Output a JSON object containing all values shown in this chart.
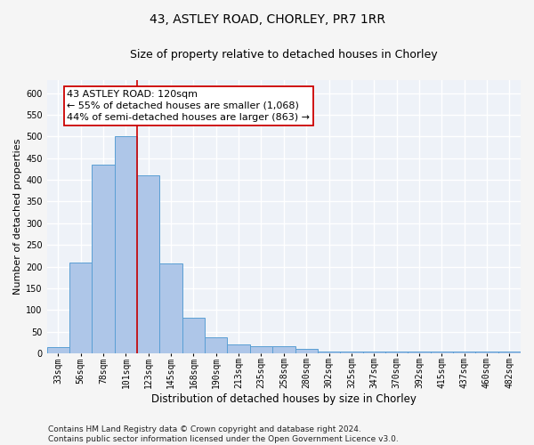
{
  "title_line1": "43, ASTLEY ROAD, CHORLEY, PR7 1RR",
  "title_line2": "Size of property relative to detached houses in Chorley",
  "xlabel": "Distribution of detached houses by size in Chorley",
  "ylabel": "Number of detached properties",
  "categories": [
    "33sqm",
    "56sqm",
    "78sqm",
    "101sqm",
    "123sqm",
    "145sqm",
    "168sqm",
    "190sqm",
    "213sqm",
    "235sqm",
    "258sqm",
    "280sqm",
    "302sqm",
    "325sqm",
    "347sqm",
    "370sqm",
    "392sqm",
    "415sqm",
    "437sqm",
    "460sqm",
    "482sqm"
  ],
  "values": [
    15,
    210,
    435,
    500,
    410,
    207,
    83,
    37,
    20,
    17,
    17,
    11,
    5,
    5,
    5,
    5,
    5,
    5,
    5,
    5,
    5
  ],
  "bar_color": "#aec6e8",
  "bar_edge_color": "#5a9fd4",
  "vline_color": "#cc0000",
  "annotation_text": "43 ASTLEY ROAD: 120sqm\n← 55% of detached houses are smaller (1,068)\n44% of semi-detached houses are larger (863) →",
  "annotation_box_color": "#ffffff",
  "annotation_box_edge": "#cc0000",
  "ylim": [
    0,
    630
  ],
  "yticks": [
    0,
    50,
    100,
    150,
    200,
    250,
    300,
    350,
    400,
    450,
    500,
    550,
    600
  ],
  "footer_text": "Contains HM Land Registry data © Crown copyright and database right 2024.\nContains public sector information licensed under the Open Government Licence v3.0.",
  "bg_color": "#eef2f8",
  "grid_color": "#ffffff",
  "fig_bg_color": "#f5f5f5",
  "title_fontsize": 10,
  "subtitle_fontsize": 9,
  "xlabel_fontsize": 8.5,
  "ylabel_fontsize": 8,
  "tick_fontsize": 7,
  "annotation_fontsize": 8,
  "footer_fontsize": 6.5
}
